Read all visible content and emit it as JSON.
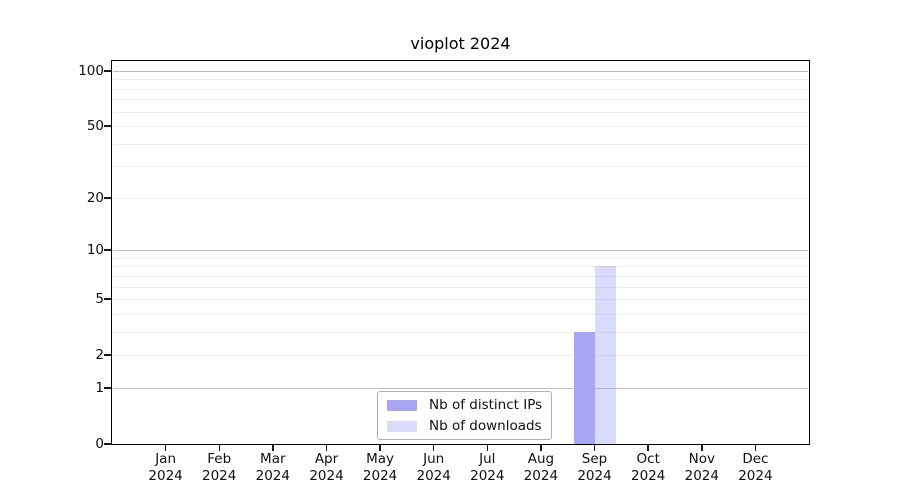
{
  "figure": {
    "title": "vioplot 2024"
  },
  "chart_data": {
    "type": "bar",
    "title": "vioplot 2024",
    "categories": [
      {
        "month": "Jan",
        "year": "2024"
      },
      {
        "month": "Feb",
        "year": "2024"
      },
      {
        "month": "Mar",
        "year": "2024"
      },
      {
        "month": "Apr",
        "year": "2024"
      },
      {
        "month": "May",
        "year": "2024"
      },
      {
        "month": "Jun",
        "year": "2024"
      },
      {
        "month": "Jul",
        "year": "2024"
      },
      {
        "month": "Aug",
        "year": "2024"
      },
      {
        "month": "Sep",
        "year": "2024"
      },
      {
        "month": "Oct",
        "year": "2024"
      },
      {
        "month": "Nov",
        "year": "2024"
      },
      {
        "month": "Dec",
        "year": "2024"
      }
    ],
    "series": [
      {
        "name": "Nb of distinct IPs",
        "color": "#a6a6f4",
        "opacity": 1,
        "values": [
          0,
          0,
          0,
          0,
          0,
          0,
          0,
          0,
          3,
          0,
          0,
          0
        ]
      },
      {
        "name": "Nb of downloads",
        "color": "#a6a6f4",
        "opacity": 0.42,
        "values": [
          0,
          0,
          0,
          0,
          0,
          0,
          0,
          0,
          8,
          0,
          0,
          0
        ]
      }
    ],
    "y_axis": {
      "scale": "log10(1+y)",
      "range": [
        0,
        112
      ],
      "ticks": [
        0,
        1,
        2,
        5,
        10,
        20,
        50,
        100
      ],
      "minor_gridlines": [
        2,
        3,
        4,
        5,
        6,
        7,
        8,
        9,
        20,
        30,
        40,
        50,
        60,
        70,
        80,
        90
      ],
      "major_gridlines": [
        1,
        10,
        100
      ]
    },
    "legend": {
      "position": "bottom-center"
    },
    "colors": {
      "grid_minor": "#ededed",
      "grid_major": "#c0c0c0",
      "axis": "#000000",
      "text": "#111111",
      "background": "#ffffff"
    }
  }
}
